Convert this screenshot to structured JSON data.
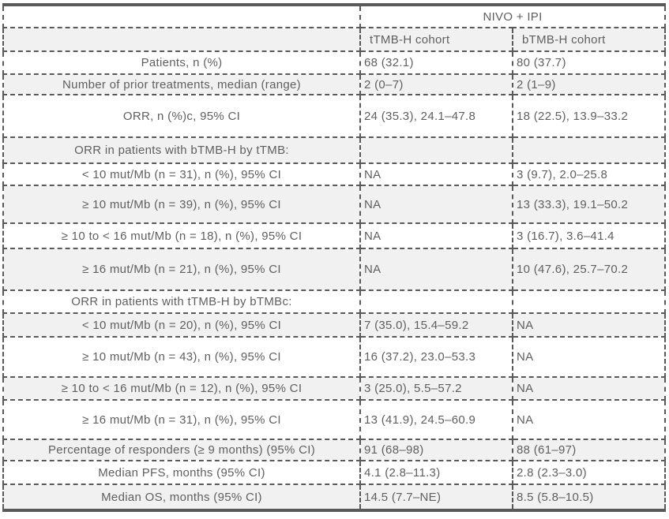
{
  "table": {
    "group_header": "NIVO + IPI",
    "corner": "",
    "columns": [
      "tTMB-H cohort",
      "bTMB-H cohort"
    ],
    "rows": [
      {
        "label": "Patients, n (%)",
        "values": [
          "68 (32.1)",
          "80 (37.7)"
        ]
      },
      {
        "label": "Number of prior treatments, median (range)",
        "values": [
          "2 (0–7)",
          "2 (1–9)"
        ]
      },
      {
        "label": "ORR, n (%)c, 95% CI",
        "values": [
          "24 (35.3), 24.1–47.8",
          "18 (22.5), 13.9–33.2"
        ]
      },
      {
        "label": "ORR in patients with bTMB-H by tTMB:",
        "values": [
          "",
          ""
        ],
        "section": true
      },
      {
        "label": "< 10 mut/Mb (n = 31), n (%), 95% CI",
        "values": [
          "NA",
          "3 (9.7), 2.0–25.8"
        ]
      },
      {
        "label": "≥ 10 mut/Mb (n = 39), n (%), 95% CI",
        "values": [
          "NA",
          "13 (33.3), 19.1–50.2"
        ]
      },
      {
        "label": "≥ 10 to < 16 mut/Mb (n = 18), n (%), 95% CI",
        "values": [
          "NA",
          "3 (16.7), 3.6–41.4"
        ]
      },
      {
        "label": "≥ 16 mut/Mb (n = 21), n (%), 95% CI",
        "values": [
          "NA",
          "10 (47.6), 25.7–70.2"
        ]
      },
      {
        "label": "ORR in patients with tTMB-H by bTMBc:",
        "values": [
          "",
          ""
        ],
        "section": true
      },
      {
        "label": "< 10 mut/Mb (n = 20), n (%), 95% CI",
        "values": [
          "7 (35.0), 15.4–59.2",
          "NA"
        ]
      },
      {
        "label": "≥ 10 mut/Mb (n = 43), n (%), 95% CI",
        "values": [
          "16 (37.2), 23.0–53.3",
          "NA"
        ]
      },
      {
        "label": "≥ 10 to < 16 mut/Mb (n = 12), n (%), 95% CI",
        "values": [
          "3 (25.0), 5.5–57.2",
          "NA"
        ]
      },
      {
        "label": "≥ 16 mut/Mb (n = 31), n (%), 95% CI",
        "values": [
          "13 (41.9), 24.5–60.9",
          "NA"
        ]
      },
      {
        "label": "Percentage of responders (≥ 9 months) (95% CI)",
        "values": [
          "91 (68–98)",
          "88 (61–97)"
        ]
      },
      {
        "label": "Median PFS, months (95% CI)",
        "values": [
          "4.1 (2.8–11.3)",
          "2.8 (2.3–3.0)"
        ]
      },
      {
        "label": "Median OS, months (95% CI)",
        "values": [
          "14.5 (7.7–NE)",
          "8.5 (5.8–10.5)"
        ]
      }
    ]
  },
  "colors": {
    "border": "#595959",
    "text": "#5f5f5f",
    "band": "#f1f1f1",
    "background": "#ffffff"
  }
}
